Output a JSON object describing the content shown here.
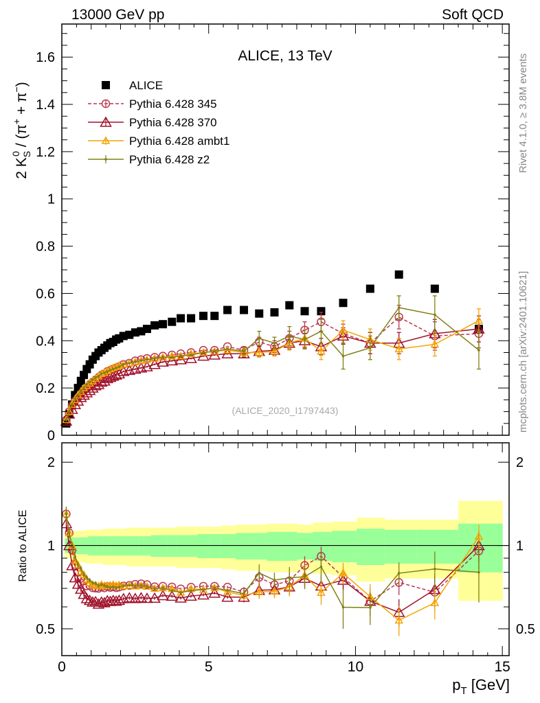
{
  "header": {
    "left": "13000 GeV pp",
    "right": "Soft QCD"
  },
  "side_text": {
    "rivet": "Rivet 4.1.0, ≥ 3.8M events",
    "mcplots": "mcplots.cern.ch [arXiv:2401.10621]"
  },
  "chart_data": {
    "type": "scatter",
    "title": "ALICE, 13 TeV",
    "watermark": "(ALICE_2020_I1797443)",
    "xlabel": "p_T [GeV]",
    "ylabel": "2 K_S^0 / (π⁺ + π⁻)",
    "ratio_ylabel": "Ratio to ALICE",
    "xlim": [
      0,
      15.23
    ],
    "ylim": [
      0,
      1.74
    ],
    "ratio_ylim": [
      0.4,
      2.35
    ],
    "ratio_scale": "log",
    "xticks": [
      "0",
      "5",
      "10",
      "15"
    ],
    "yticks": [
      "0",
      "0.2",
      "0.4",
      "0.6",
      "0.8",
      "1",
      "1.2",
      "1.4",
      "1.6"
    ],
    "ratio_yticks": [
      "0.5",
      "1",
      "2"
    ],
    "legend_position": "top-left",
    "x": [
      0.15,
      0.25,
      0.35,
      0.45,
      0.55,
      0.65,
      0.75,
      0.85,
      0.95,
      1.05,
      1.15,
      1.25,
      1.35,
      1.45,
      1.55,
      1.65,
      1.75,
      1.85,
      1.95,
      2.1,
      2.3,
      2.5,
      2.7,
      2.9,
      3.16,
      3.44,
      3.75,
      4.05,
      4.4,
      4.82,
      5.2,
      5.64,
      6.2,
      6.72,
      7.24,
      7.75,
      8.27,
      8.83,
      9.58,
      10.5,
      11.48,
      12.7,
      14.2
    ],
    "data": {
      "name": "ALICE",
      "color": "#000000",
      "values": [
        0.05,
        0.09,
        0.13,
        0.17,
        0.2,
        0.23,
        0.255,
        0.28,
        0.3,
        0.32,
        0.335,
        0.35,
        0.36,
        0.37,
        0.38,
        0.39,
        0.395,
        0.405,
        0.41,
        0.42,
        0.425,
        0.435,
        0.44,
        0.45,
        0.465,
        0.47,
        0.48,
        0.495,
        0.495,
        0.505,
        0.505,
        0.53,
        0.53,
        0.515,
        0.52,
        0.55,
        0.525,
        0.525,
        0.56,
        0.62,
        0.68,
        0.62,
        0.45
      ],
      "stat_rel": [
        0.06,
        0.06,
        0.07,
        0.07,
        0.07,
        0.07,
        0.07,
        0.07,
        0.08,
        0.08,
        0.08,
        0.08,
        0.08,
        0.08,
        0.08,
        0.08,
        0.08,
        0.08,
        0.08,
        0.08,
        0.08,
        0.08,
        0.08,
        0.08,
        0.09,
        0.09,
        0.09,
        0.09,
        0.09,
        0.1,
        0.1,
        0.1,
        0.11,
        0.11,
        0.12,
        0.12,
        0.11,
        0.12,
        0.13,
        0.15,
        0.14,
        0.14,
        0.2
      ],
      "total_rel": [
        0.1,
        0.1,
        0.12,
        0.13,
        0.13,
        0.13,
        0.13,
        0.14,
        0.14,
        0.14,
        0.14,
        0.14,
        0.14,
        0.15,
        0.15,
        0.15,
        0.15,
        0.15,
        0.15,
        0.15,
        0.16,
        0.16,
        0.16,
        0.16,
        0.16,
        0.16,
        0.16,
        0.17,
        0.17,
        0.17,
        0.17,
        0.18,
        0.19,
        0.19,
        0.2,
        0.2,
        0.19,
        0.21,
        0.22,
        0.26,
        0.24,
        0.24,
        0.45
      ],
      "last_bin_upper_edge": 15
    },
    "err_tail_start_x": 6.2,
    "series": [
      {
        "name": "Pythia 6.428 345",
        "color": "#b8364e",
        "marker": "circle",
        "dash": true,
        "values": [
          0.065,
          0.1,
          0.125,
          0.145,
          0.16,
          0.175,
          0.19,
          0.2,
          0.215,
          0.225,
          0.235,
          0.245,
          0.255,
          0.26,
          0.27,
          0.275,
          0.28,
          0.285,
          0.29,
          0.3,
          0.305,
          0.315,
          0.32,
          0.325,
          0.33,
          0.335,
          0.34,
          0.345,
          0.35,
          0.36,
          0.36,
          0.375,
          0.36,
          0.395,
          0.375,
          0.41,
          0.445,
          0.48,
          0.43,
          0.39,
          0.5,
          0.42,
          0.43
        ],
        "err_tail": [
          0.015,
          0.02,
          0.025,
          0.03,
          0.035,
          0.04,
          0.04,
          0.045,
          0.05,
          0.06,
          0.06,
          0.07
        ]
      },
      {
        "name": "Pythia 6.428 370",
        "color": "#a0102a",
        "marker": "triangle",
        "dash": false,
        "values": [
          0.06,
          0.09,
          0.11,
          0.13,
          0.145,
          0.16,
          0.17,
          0.18,
          0.19,
          0.2,
          0.21,
          0.215,
          0.225,
          0.23,
          0.24,
          0.245,
          0.25,
          0.255,
          0.26,
          0.27,
          0.275,
          0.28,
          0.285,
          0.29,
          0.3,
          0.31,
          0.315,
          0.32,
          0.325,
          0.335,
          0.34,
          0.345,
          0.345,
          0.355,
          0.36,
          0.39,
          0.4,
          0.375,
          0.42,
          0.39,
          0.39,
          0.43,
          0.45
        ],
        "err_tail": [
          0.015,
          0.02,
          0.02,
          0.025,
          0.03,
          0.035,
          0.035,
          0.045,
          0.045,
          0.06,
          0.055,
          0.07
        ]
      },
      {
        "name": "Pythia 6.428 ambt1",
        "color": "#f5a300",
        "marker": "triangle-small",
        "dash": false,
        "values": [
          0.065,
          0.1,
          0.13,
          0.15,
          0.17,
          0.185,
          0.2,
          0.21,
          0.22,
          0.23,
          0.24,
          0.25,
          0.26,
          0.265,
          0.272,
          0.28,
          0.285,
          0.29,
          0.295,
          0.3,
          0.305,
          0.31,
          0.315,
          0.32,
          0.325,
          0.33,
          0.335,
          0.335,
          0.345,
          0.35,
          0.355,
          0.36,
          0.35,
          0.35,
          0.355,
          0.39,
          0.41,
          0.355,
          0.445,
          0.405,
          0.365,
          0.385,
          0.485
        ],
        "err_tail": [
          0.015,
          0.02,
          0.02,
          0.03,
          0.035,
          0.035,
          0.04,
          0.045,
          0.045,
          0.05,
          0.05,
          0.085
        ]
      },
      {
        "name": "Pythia 6.428 z2",
        "color": "#7f8010",
        "marker": "dot",
        "dash": false,
        "values": [
          0.065,
          0.1,
          0.13,
          0.155,
          0.17,
          0.19,
          0.2,
          0.215,
          0.225,
          0.235,
          0.245,
          0.25,
          0.26,
          0.265,
          0.27,
          0.275,
          0.28,
          0.285,
          0.29,
          0.3,
          0.305,
          0.31,
          0.315,
          0.32,
          0.325,
          0.33,
          0.33,
          0.335,
          0.34,
          0.35,
          0.355,
          0.365,
          0.355,
          0.41,
          0.39,
          0.42,
          0.405,
          0.44,
          0.335,
          0.37,
          0.54,
          0.51,
          0.36
        ],
        "err_tail": [
          0.015,
          0.03,
          0.025,
          0.04,
          0.04,
          0.05,
          0.055,
          0.05,
          0.05,
          0.08,
          0.08,
          0.08
        ]
      }
    ]
  }
}
